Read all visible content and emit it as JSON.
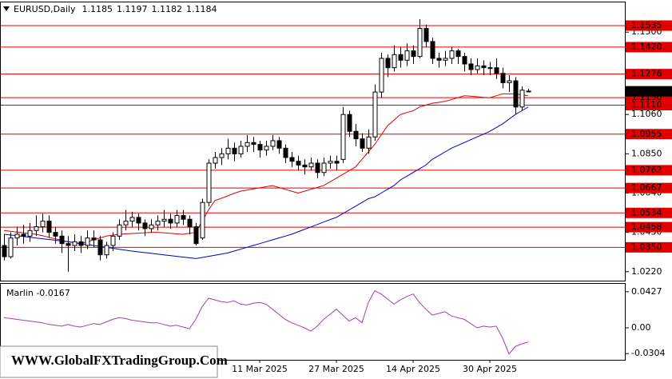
{
  "chart_data": {
    "type": "candlestick",
    "symbol_label": "EURUSD,Daily",
    "watermark": "WWW.GlobalFXTradingGroup.Com",
    "ylim": [
      1.0172,
      1.1659
    ],
    "yticks": [
      {
        "value": 1.15,
        "label": "1.1500"
      },
      {
        "value": 1.127,
        "label": "1.1270"
      },
      {
        "value": 1.106,
        "label": "1.1060"
      },
      {
        "value": 1.085,
        "label": "1.0850"
      },
      {
        "value": 1.064,
        "label": "1.0640"
      },
      {
        "value": 1.043,
        "label": "1.0430"
      },
      {
        "value": 1.022,
        "label": "1.0220"
      }
    ],
    "level_color": "#e00000",
    "levels": [
      {
        "value": 1.1535,
        "label": "1.1535"
      },
      {
        "value": 1.142,
        "label": "1.1420"
      },
      {
        "value": 1.1276,
        "label": "1.1276"
      },
      {
        "value": 1.115,
        "label": "1.1150"
      },
      {
        "value": 1.111,
        "label": "1.1110"
      },
      {
        "value": 1.0955,
        "label": "1.0955"
      },
      {
        "value": 1.0762,
        "label": "1.0762"
      },
      {
        "value": 1.0667,
        "label": "1.0667"
      },
      {
        "value": 1.0534,
        "label": "1.0534"
      },
      {
        "value": 1.0458,
        "label": "1.0458"
      },
      {
        "value": 1.035,
        "label": "1.0350"
      }
    ],
    "categories": [
      null,
      null,
      null,
      null,
      null,
      null,
      null,
      null,
      null,
      null,
      null,
      null,
      null,
      null,
      null,
      null,
      null,
      null,
      null,
      null,
      null,
      null,
      null,
      null,
      null,
      null,
      null,
      null,
      null,
      null,
      null,
      null,
      null,
      null,
      null,
      null,
      null,
      null,
      null,
      null,
      "11 Mar 2025",
      null,
      null,
      null,
      null,
      null,
      null,
      null,
      null,
      null,
      null,
      null,
      "27 Mar 2025",
      null,
      null,
      null,
      null,
      null,
      null,
      null,
      null,
      null,
      null,
      null,
      "14 Apr 2025",
      null,
      null,
      null,
      null,
      null,
      null,
      null,
      null,
      null,
      null,
      null,
      "30 Apr 2025",
      null,
      null,
      null,
      null,
      null,
      null
    ],
    "ohlc": [
      [
        1.036,
        1.042,
        1.028,
        1.03
      ],
      [
        1.03,
        1.043,
        1.029,
        1.04
      ],
      [
        1.04,
        1.046,
        1.036,
        1.042
      ],
      [
        1.042,
        1.047,
        1.037,
        1.041
      ],
      [
        1.041,
        1.048,
        1.038,
        1.044
      ],
      [
        1.044,
        1.052,
        1.041,
        1.046
      ],
      [
        1.046,
        1.053,
        1.043,
        1.049
      ],
      [
        1.049,
        1.052,
        1.04,
        1.043
      ],
      [
        1.043,
        1.046,
        1.037,
        1.041
      ],
      [
        1.041,
        1.044,
        1.032,
        1.037
      ],
      [
        1.037,
        1.041,
        1.022,
        1.036
      ],
      [
        1.036,
        1.042,
        1.033,
        1.038
      ],
      [
        1.038,
        1.041,
        1.032,
        1.036
      ],
      [
        1.036,
        1.044,
        1.034,
        1.04
      ],
      [
        1.04,
        1.044,
        1.035,
        1.039
      ],
      [
        1.039,
        1.041,
        1.028,
        1.031
      ],
      [
        1.031,
        1.038,
        1.029,
        1.036
      ],
      [
        1.036,
        1.043,
        1.033,
        1.041
      ],
      [
        1.041,
        1.05,
        1.039,
        1.047
      ],
      [
        1.047,
        1.055,
        1.044,
        1.049
      ],
      [
        1.049,
        1.054,
        1.046,
        1.051
      ],
      [
        1.051,
        1.053,
        1.044,
        1.048
      ],
      [
        1.048,
        1.05,
        1.041,
        1.045
      ],
      [
        1.045,
        1.05,
        1.043,
        1.047
      ],
      [
        1.047,
        1.052,
        1.044,
        1.049
      ],
      [
        1.049,
        1.055,
        1.046,
        1.05
      ],
      [
        1.05,
        1.053,
        1.045,
        1.048
      ],
      [
        1.048,
        1.055,
        1.046,
        1.052
      ],
      [
        1.052,
        1.055,
        1.047,
        1.05
      ],
      [
        1.05,
        1.052,
        1.042,
        1.046
      ],
      [
        1.046,
        1.048,
        1.036,
        1.037
      ],
      [
        1.04,
        1.061,
        1.039,
        1.059
      ],
      [
        1.059,
        1.082,
        1.057,
        1.08
      ],
      [
        1.08,
        1.086,
        1.077,
        1.083
      ],
      [
        1.083,
        1.088,
        1.079,
        1.085
      ],
      [
        1.085,
        1.093,
        1.082,
        1.088
      ],
      [
        1.088,
        1.091,
        1.081,
        1.085
      ],
      [
        1.085,
        1.092,
        1.083,
        1.089
      ],
      [
        1.089,
        1.095,
        1.086,
        1.091
      ],
      [
        1.091,
        1.094,
        1.086,
        1.09
      ],
      [
        1.09,
        1.092,
        1.083,
        1.087
      ],
      [
        1.087,
        1.092,
        1.084,
        1.089
      ],
      [
        1.089,
        1.095,
        1.087,
        1.092
      ],
      [
        1.092,
        1.094,
        1.085,
        1.088
      ],
      [
        1.088,
        1.09,
        1.08,
        1.083
      ],
      [
        1.083,
        1.086,
        1.078,
        1.081
      ],
      [
        1.081,
        1.084,
        1.076,
        1.079
      ],
      [
        1.079,
        1.082,
        1.074,
        1.078
      ],
      [
        1.078,
        1.083,
        1.076,
        1.08
      ],
      [
        1.08,
        1.082,
        1.072,
        1.075
      ],
      [
        1.075,
        1.083,
        1.073,
        1.08
      ],
      [
        1.08,
        1.084,
        1.077,
        1.081
      ],
      [
        1.081,
        1.084,
        1.076,
        1.08
      ],
      [
        1.082,
        1.11,
        1.08,
        1.106
      ],
      [
        1.106,
        1.108,
        1.094,
        1.097
      ],
      [
        1.097,
        1.101,
        1.089,
        1.093
      ],
      [
        1.093,
        1.096,
        1.086,
        1.088
      ],
      [
        1.088,
        1.098,
        1.085,
        1.094
      ],
      [
        1.094,
        1.122,
        1.092,
        1.118
      ],
      [
        1.118,
        1.139,
        1.115,
        1.136
      ],
      [
        1.136,
        1.138,
        1.126,
        1.131
      ],
      [
        1.131,
        1.143,
        1.129,
        1.138
      ],
      [
        1.138,
        1.142,
        1.131,
        1.135
      ],
      [
        1.135,
        1.144,
        1.132,
        1.14
      ],
      [
        1.14,
        1.143,
        1.133,
        1.137
      ],
      [
        1.137,
        1.157,
        1.136,
        1.152
      ],
      [
        1.152,
        1.154,
        1.142,
        1.145
      ],
      [
        1.145,
        1.147,
        1.133,
        1.136
      ],
      [
        1.136,
        1.139,
        1.131,
        1.135
      ],
      [
        1.135,
        1.14,
        1.132,
        1.136
      ],
      [
        1.136,
        1.142,
        1.133,
        1.14
      ],
      [
        1.14,
        1.141,
        1.133,
        1.137
      ],
      [
        1.137,
        1.139,
        1.129,
        1.133
      ],
      [
        1.133,
        1.136,
        1.127,
        1.13
      ],
      [
        1.13,
        1.136,
        1.128,
        1.132
      ],
      [
        1.132,
        1.135,
        1.127,
        1.131
      ],
      [
        1.131,
        1.134,
        1.127,
        1.131
      ],
      [
        1.131,
        1.136,
        1.125,
        1.128
      ],
      [
        1.128,
        1.131,
        1.12,
        1.123
      ],
      [
        1.123,
        1.127,
        1.118,
        1.124
      ],
      [
        1.124,
        1.126,
        1.106,
        1.11
      ],
      [
        1.11,
        1.121,
        1.108,
        1.119
      ],
      [
        1.1185,
        1.1197,
        1.1182,
        1.1184
      ]
    ],
    "lines": [
      {
        "color": "#e00000",
        "values": [
          1.044,
          1.0436,
          1.0432,
          1.0428,
          1.0424,
          1.042,
          1.0412,
          1.0404,
          1.0396,
          1.0388,
          1.038,
          1.0375,
          1.037,
          1.038,
          1.039,
          1.04,
          1.041,
          1.0415,
          1.042,
          1.0422,
          1.0424,
          1.0426,
          1.0428,
          1.043,
          1.043,
          1.0428,
          1.0425,
          1.0422,
          1.042,
          1.0425,
          1.043,
          1.049,
          1.055,
          1.06,
          1.0612,
          1.0625,
          1.0638,
          1.065,
          1.0656,
          1.0662,
          1.0668,
          1.0674,
          1.068,
          1.067,
          1.066,
          1.065,
          1.064,
          1.065,
          1.066,
          1.067,
          1.068,
          1.07,
          1.072,
          1.074,
          1.076,
          1.078,
          1.082,
          1.086,
          1.09,
          1.095,
          1.1,
          1.103,
          1.106,
          1.107,
          1.108,
          1.11,
          1.111,
          1.112,
          1.1125,
          1.113,
          1.114,
          1.115,
          1.116,
          1.1158,
          1.1155,
          1.1152,
          1.115,
          1.116,
          1.117,
          1.117,
          1.117,
          1.1165,
          1.116
        ]
      },
      {
        "color": "#0000c0",
        "values": [
          1.042,
          1.0416,
          1.0412,
          1.0408,
          1.0404,
          1.04,
          1.0396,
          1.0392,
          1.0388,
          1.0384,
          1.038,
          1.0375,
          1.037,
          1.0365,
          1.036,
          1.0355,
          1.035,
          1.0345,
          1.034,
          1.0335,
          1.033,
          1.0326,
          1.0322,
          1.0318,
          1.0314,
          1.031,
          1.0306,
          1.0302,
          1.0298,
          1.0294,
          1.029,
          1.0296,
          1.0302,
          1.0308,
          1.0314,
          1.032,
          1.033,
          1.034,
          1.035,
          1.036,
          1.037,
          1.038,
          1.039,
          1.04,
          1.041,
          1.042,
          1.0433,
          1.0446,
          1.0459,
          1.0472,
          1.0485,
          1.0498,
          1.051,
          1.053,
          1.055,
          1.057,
          1.059,
          1.061,
          1.062,
          1.064,
          1.066,
          1.068,
          1.071,
          1.073,
          1.075,
          1.077,
          1.079,
          1.082,
          1.084,
          1.086,
          1.088,
          1.0895,
          1.091,
          1.0925,
          1.094,
          1.0955,
          1.097,
          1.099,
          1.101,
          1.1035,
          1.106,
          1.108,
          1.11
        ]
      }
    ],
    "indicator": {
      "type": "line",
      "label": "Marlin -0.0167",
      "color": "#a040b0",
      "ylim": [
        -0.0378,
        0.052
      ],
      "yticks": [
        0.0427,
        {
          "value": 0,
          "label": "0.00"
        },
        -0.0304
      ],
      "values": [
        0.012,
        0.011,
        0.01,
        0.009,
        0.008,
        0.007,
        0.006,
        0.004,
        0.003,
        0.002,
        0.004,
        0.002,
        0.001,
        0.003,
        0.005,
        0.004,
        0.007,
        0.01,
        0.012,
        0.011,
        0.009,
        0.008,
        0.007,
        0.006,
        0.006,
        0.004,
        0.002,
        0.003,
        0.001,
        -0.001,
        0.01,
        0.025,
        0.035,
        0.033,
        0.031,
        0.03,
        0.032,
        0.028,
        0.027,
        0.029,
        0.03,
        0.028,
        0.022,
        0.016,
        0.01,
        0.006,
        0.003,
        0.0,
        -0.004,
        0.002,
        0.01,
        0.016,
        0.022,
        0.015,
        0.008,
        0.012,
        0.006,
        0.03,
        0.044,
        0.04,
        0.034,
        0.028,
        0.033,
        0.037,
        0.04,
        0.03,
        0.022,
        0.015,
        0.017,
        0.019,
        0.014,
        0.012,
        0.01,
        0.005,
        0.0,
        0.002,
        0.001,
        0.002,
        -0.012,
        -0.031,
        -0.022,
        -0.019,
        -0.0167
      ]
    }
  }
}
